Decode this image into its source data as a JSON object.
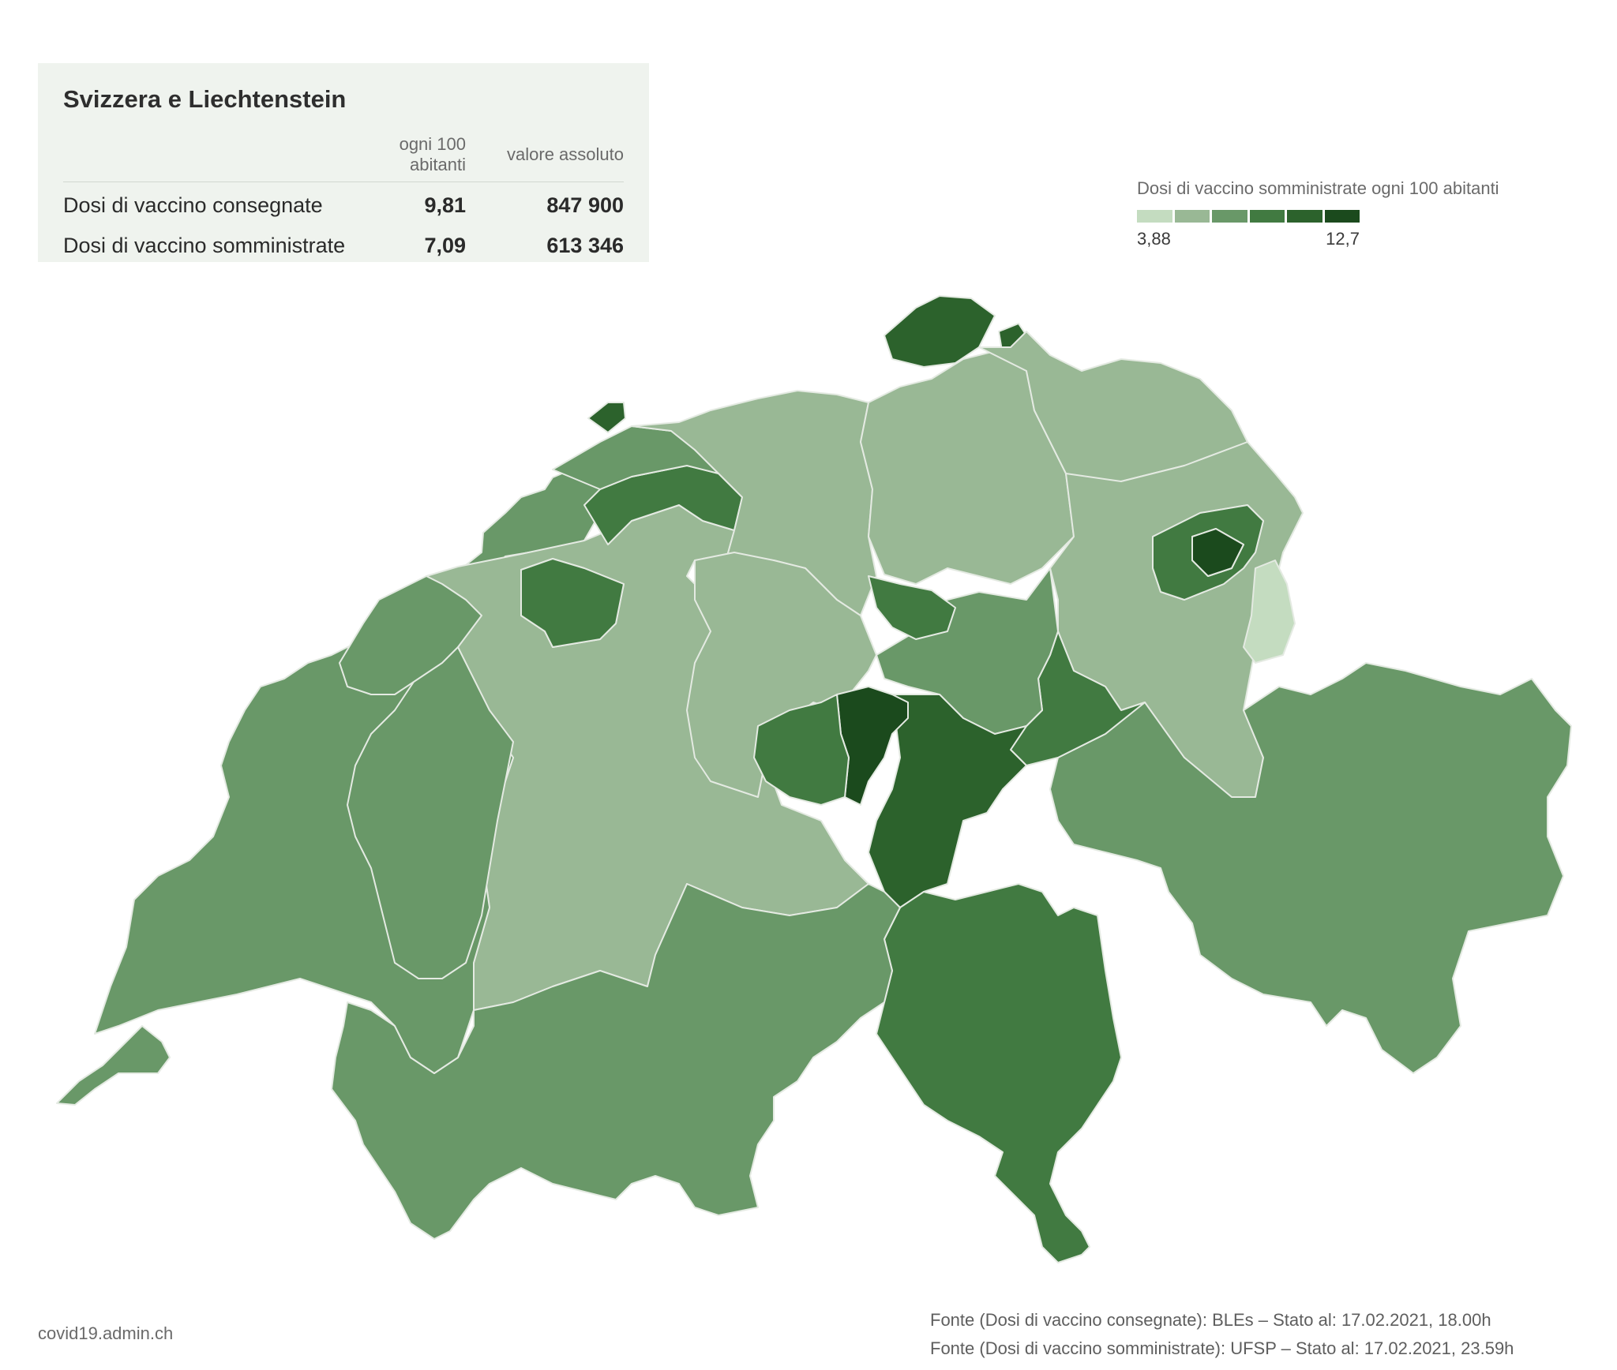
{
  "summary": {
    "title": "Svizzera e Liechtenstein",
    "col_per100": "ogni 100 abitanti",
    "col_absolute": "valore assoluto",
    "rows": [
      {
        "label": "Dosi di vaccino consegnate",
        "per100": "9,81",
        "absolute": "847 900"
      },
      {
        "label": "Dosi di vaccino somministrate",
        "per100": "7,09",
        "absolute": "613 346"
      }
    ]
  },
  "legend": {
    "title": "Dosi di vaccino somministrate ogni 100 abitanti",
    "min_label": "3,88",
    "max_label": "12,7",
    "min": 3.88,
    "max": 12.7,
    "colors": [
      "#c4dcc0",
      "#99b895",
      "#699868",
      "#417a41",
      "#2c622c",
      "#1b4a1d"
    ]
  },
  "map": {
    "border_color": "#e4eae2",
    "regions": [
      {
        "id": "JU",
        "bin": 2
      },
      {
        "id": "BE",
        "bin": 1
      },
      {
        "id": "SO",
        "bin": 3
      },
      {
        "id": "BL",
        "bin": 2
      },
      {
        "id": "BS",
        "bin": 4
      },
      {
        "id": "AG",
        "bin": 1
      },
      {
        "id": "LU",
        "bin": 1
      },
      {
        "id": "ZH",
        "bin": 1
      },
      {
        "id": "SH",
        "bin": 4
      },
      {
        "id": "TG",
        "bin": 1
      },
      {
        "id": "SG",
        "bin": 1
      },
      {
        "id": "AR",
        "bin": 3
      },
      {
        "id": "AI",
        "bin": 5
      },
      {
        "id": "LI",
        "bin": 0
      },
      {
        "id": "GR",
        "bin": 2
      },
      {
        "id": "GL",
        "bin": 3
      },
      {
        "id": "SZ",
        "bin": 2
      },
      {
        "id": "ZG",
        "bin": 3
      },
      {
        "id": "UR",
        "bin": 4
      },
      {
        "id": "NW",
        "bin": 5
      },
      {
        "id": "OW",
        "bin": 3
      },
      {
        "id": "TI",
        "bin": 3
      },
      {
        "id": "VS",
        "bin": 2
      },
      {
        "id": "VD",
        "bin": 2
      },
      {
        "id": "FR",
        "bin": 2
      },
      {
        "id": "NE",
        "bin": 2
      },
      {
        "id": "GE",
        "bin": 2
      }
    ]
  },
  "footer": {
    "site": "covid19.admin.ch",
    "source1": "Fonte (Dosi di vaccino consegnate): BLEs – Stato al: 17.02.2021, 18.00h",
    "source2": "Fonte (Dosi di vaccino somministrate): UFSP – Stato al: 17.02.2021, 23.59h"
  }
}
